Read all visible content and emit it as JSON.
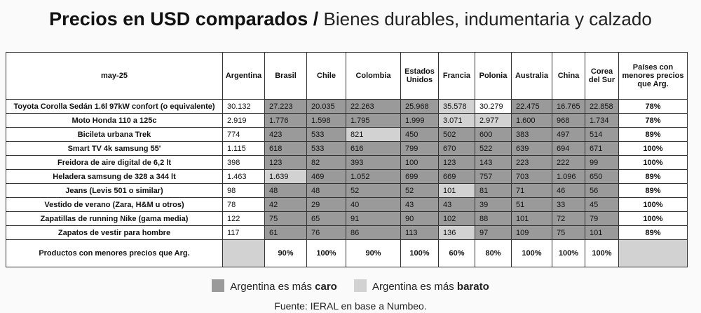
{
  "title_bold": "Precios en USD comparados /",
  "title_rest": " Bienes durables, indumentaria y calzado",
  "headers": {
    "period": "may-25",
    "countries": [
      "Argentina",
      "Brasil",
      "Chile",
      "Colombia",
      "Estados Unidos",
      "Francia",
      "Polonia",
      "Australia",
      "China",
      "Corea del Sur"
    ],
    "last": "Países con menores precios que Arg."
  },
  "rows": [
    {
      "product": "Toyota Corolla Sedán 1.6l 97kW confort (o equivalente)",
      "values": [
        "30.132",
        "27.223",
        "20.035",
        "22.263",
        "25.968",
        "35.578",
        "30.279",
        "22.475",
        "16.765",
        "22.858"
      ],
      "cls": [
        "w",
        "c",
        "c",
        "c",
        "c",
        "b",
        "w",
        "c",
        "c",
        "c"
      ],
      "pct": "78%"
    },
    {
      "product": "Moto Honda 110 a 125c",
      "values": [
        "2.919",
        "1.776",
        "1.598",
        "1.795",
        "1.999",
        "3.071",
        "2.977",
        "1.600",
        "968",
        "1.734"
      ],
      "cls": [
        "w",
        "c",
        "c",
        "c",
        "c",
        "b",
        "b",
        "c",
        "c",
        "c"
      ],
      "pct": "78%"
    },
    {
      "product": "Bicileta urbana Trek",
      "values": [
        "774",
        "423",
        "533",
        "821",
        "450",
        "502",
        "600",
        "383",
        "497",
        "514"
      ],
      "cls": [
        "w",
        "c",
        "c",
        "b",
        "c",
        "c",
        "c",
        "c",
        "c",
        "c"
      ],
      "pct": "89%"
    },
    {
      "product": "Smart TV 4k samsung 55'",
      "values": [
        "1.115",
        "618",
        "533",
        "616",
        "799",
        "670",
        "522",
        "639",
        "694",
        "671"
      ],
      "cls": [
        "w",
        "c",
        "c",
        "c",
        "c",
        "c",
        "c",
        "c",
        "c",
        "c"
      ],
      "pct": "100%"
    },
    {
      "product": "Freidora de aire digital de 6,2 lt",
      "values": [
        "398",
        "123",
        "82",
        "393",
        "100",
        "123",
        "143",
        "223",
        "222",
        "99"
      ],
      "cls": [
        "w",
        "c",
        "c",
        "c",
        "c",
        "c",
        "c",
        "c",
        "c",
        "c"
      ],
      "pct": "100%"
    },
    {
      "product": "Heladera samsung de 328 a 344 lt",
      "values": [
        "1.463",
        "1.639",
        "469",
        "1.052",
        "699",
        "669",
        "757",
        "703",
        "1.096",
        "650"
      ],
      "cls": [
        "w",
        "b",
        "c",
        "c",
        "c",
        "c",
        "c",
        "c",
        "c",
        "c"
      ],
      "pct": "89%"
    },
    {
      "product": "Jeans (Levis 501 o similar)",
      "values": [
        "98",
        "48",
        "48",
        "52",
        "52",
        "101",
        "81",
        "71",
        "46",
        "56"
      ],
      "cls": [
        "w",
        "c",
        "c",
        "c",
        "c",
        "b",
        "c",
        "c",
        "c",
        "c"
      ],
      "pct": "89%"
    },
    {
      "product": "Vestido de verano (Zara, H&M u otros)",
      "values": [
        "78",
        "42",
        "29",
        "40",
        "43",
        "43",
        "39",
        "51",
        "33",
        "45"
      ],
      "cls": [
        "w",
        "c",
        "c",
        "c",
        "c",
        "c",
        "c",
        "c",
        "c",
        "c"
      ],
      "pct": "100%"
    },
    {
      "product": "Zapatillas de running Nike (gama media)",
      "values": [
        "122",
        "75",
        "65",
        "91",
        "90",
        "102",
        "88",
        "101",
        "72",
        "79"
      ],
      "cls": [
        "w",
        "c",
        "c",
        "c",
        "c",
        "c",
        "c",
        "c",
        "c",
        "c"
      ],
      "pct": "100%"
    },
    {
      "product": "Zapatos de vestir para hombre",
      "values": [
        "117",
        "61",
        "76",
        "86",
        "113",
        "136",
        "97",
        "109",
        "75",
        "101"
      ],
      "cls": [
        "w",
        "c",
        "c",
        "c",
        "c",
        "b",
        "c",
        "c",
        "c",
        "c"
      ],
      "pct": "89%"
    }
  ],
  "summary": {
    "label": "Productos con menores precios que Arg.",
    "values": [
      "",
      "90%",
      "100%",
      "90%",
      "100%",
      "60%",
      "80%",
      "100%",
      "100%",
      "100%"
    ]
  },
  "legend": {
    "caro_prefix": "Argentina es más ",
    "caro_word": "caro",
    "barato_prefix": "Argentina es más ",
    "barato_word": "barato",
    "caro_color": "#9a9a9a",
    "barato_color": "#d2d2d2"
  },
  "source": "Fuente: IERAL en base a Numbeo."
}
